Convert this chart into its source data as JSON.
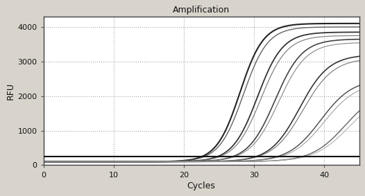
{
  "title": "Amplification",
  "xlabel": "Cycles",
  "ylabel": "RFU",
  "xlim": [
    0,
    45
  ],
  "ylim": [
    0,
    4300
  ],
  "yticks": [
    0,
    1000,
    2000,
    3000,
    4000
  ],
  "xticks": [
    0,
    10,
    20,
    30,
    40
  ],
  "threshold_y": 250,
  "plot_bg": "#ffffff",
  "fig_bg": "#d8d4cc",
  "grid_color": "#999999",
  "curves": [
    {
      "midpoint": 28.0,
      "L": 4000,
      "k": 0.6,
      "color": "#111111",
      "lw": 1.5
    },
    {
      "midpoint": 28.5,
      "L": 3900,
      "k": 0.58,
      "color": "#555555",
      "lw": 1.0
    },
    {
      "midpoint": 30.5,
      "L": 3750,
      "k": 0.56,
      "color": "#222222",
      "lw": 1.3
    },
    {
      "midpoint": 31.0,
      "L": 3650,
      "k": 0.54,
      "color": "#777777",
      "lw": 0.9
    },
    {
      "midpoint": 33.0,
      "L": 3550,
      "k": 0.52,
      "color": "#333333",
      "lw": 1.2
    },
    {
      "midpoint": 33.5,
      "L": 3450,
      "k": 0.5,
      "color": "#888888",
      "lw": 0.9
    },
    {
      "midpoint": 36.5,
      "L": 3100,
      "k": 0.48,
      "color": "#222222",
      "lw": 1.2
    },
    {
      "midpoint": 37.0,
      "L": 3000,
      "k": 0.46,
      "color": "#777777",
      "lw": 0.9
    },
    {
      "midpoint": 39.5,
      "L": 2400,
      "k": 0.44,
      "color": "#444444",
      "lw": 1.1
    },
    {
      "midpoint": 40.0,
      "L": 2300,
      "k": 0.43,
      "color": "#999999",
      "lw": 0.8
    },
    {
      "midpoint": 43.0,
      "L": 2100,
      "k": 0.42,
      "color": "#555555",
      "lw": 1.0
    },
    {
      "midpoint": 43.5,
      "L": 2000,
      "k": 0.41,
      "color": "#aaaaaa",
      "lw": 0.8
    }
  ]
}
